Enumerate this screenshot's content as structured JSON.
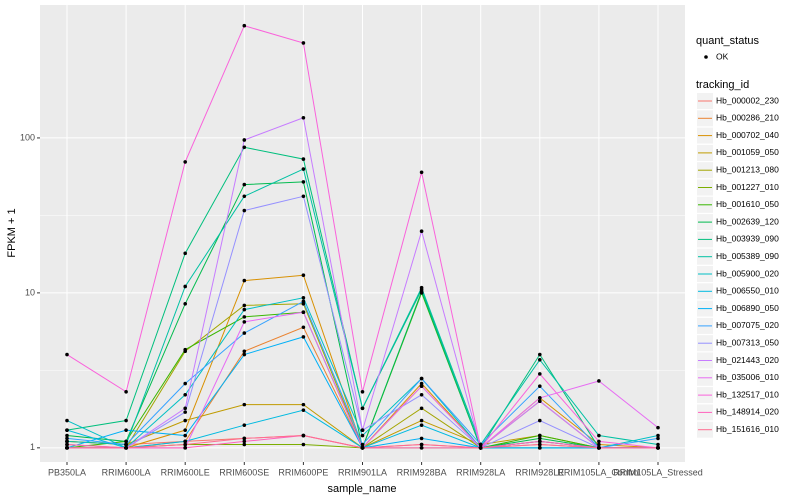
{
  "chart_data": {
    "type": "line",
    "x_label": "sample_name",
    "y_label": "FPKM + 1",
    "log_scale": true,
    "grid": true,
    "ylim": [
      0.81,
      721
    ],
    "yticks": [
      1,
      10,
      100
    ],
    "categories": [
      "PB350LA",
      "RRIM600LA",
      "RRIM600LE",
      "RRIM600SE",
      "RRIM600PE",
      "RRIM901LA",
      "RRIM928BA",
      "RRIM928LA",
      "RRIM928LE",
      "RRIM105LA_Control",
      "RRIM105LA_Stressed"
    ],
    "point_legend_title": "quant_status",
    "point_legend_label": "OK",
    "point_color": "#000000",
    "legend_title": "tracking_id",
    "series": [
      {
        "name": "Hb_000002_230",
        "color": "#F8766D",
        "values": [
          1.1,
          1.05,
          1.1,
          1.15,
          1.2,
          1.0,
          1.05,
          1.0,
          1.05,
          1.0,
          1.0
        ]
      },
      {
        "name": "Hb_000286_210",
        "color": "#EA8331",
        "values": [
          1.0,
          1.0,
          1.1,
          4.2,
          6,
          1.0,
          2.5,
          1.0,
          2.0,
          1.0,
          1.0
        ]
      },
      {
        "name": "Hb_000702_040",
        "color": "#D89000",
        "values": [
          1.0,
          1.0,
          1.3,
          12,
          13,
          1.0,
          2.6,
          1.0,
          2.1,
          1.05,
          1.0
        ]
      },
      {
        "name": "Hb_001059_050",
        "color": "#C09B00",
        "values": [
          1.1,
          1.05,
          1.5,
          1.9,
          1.9,
          1.0,
          1.5,
          1.05,
          1.2,
          1.0,
          1.0
        ]
      },
      {
        "name": "Hb_001213_080",
        "color": "#A3A500",
        "values": [
          1.05,
          1.0,
          4.2,
          8.3,
          8.5,
          1.0,
          1.8,
          1.0,
          1.1,
          1.0,
          1.0
        ]
      },
      {
        "name": "Hb_001227_010",
        "color": "#7CAE00",
        "values": [
          1.0,
          1.0,
          1.05,
          1.05,
          1.05,
          1.0,
          1.0,
          1.0,
          1.0,
          1.0,
          1.0
        ]
      },
      {
        "name": "Hb_001610_050",
        "color": "#39B600",
        "values": [
          1.0,
          1.1,
          4.3,
          7,
          7.5,
          1.0,
          10,
          1.0,
          1.2,
          1.0,
          1.0
        ]
      },
      {
        "name": "Hb_002639_120",
        "color": "#00BB4E",
        "values": [
          1.2,
          1.1,
          8.5,
          50,
          52,
          1.0,
          10.2,
          1.0,
          1.15,
          1.0,
          1.0
        ]
      },
      {
        "name": "Hb_003939_090",
        "color": "#00BF7D",
        "values": [
          1.3,
          1.5,
          18,
          87,
          73,
          1.8,
          10.5,
          1.0,
          4.0,
          1.0,
          1.0
        ]
      },
      {
        "name": "Hb_005389_090",
        "color": "#00C1A3",
        "values": [
          1.1,
          1.05,
          11,
          42,
          63,
          1.8,
          10.8,
          1.05,
          3.7,
          1.2,
          1.05
        ]
      },
      {
        "name": "Hb_005900_020",
        "color": "#00BFC4",
        "values": [
          1.5,
          1.0,
          2.2,
          7.8,
          9.3,
          1.2,
          2.8,
          1.0,
          1.1,
          1.0,
          1.2
        ]
      },
      {
        "name": "Hb_006550_010",
        "color": "#00BAE0",
        "values": [
          1.3,
          1.0,
          1.1,
          1.4,
          1.75,
          1.0,
          1.4,
          1.0,
          1.0,
          1.0,
          1.0
        ]
      },
      {
        "name": "Hb_006890_050",
        "color": "#00B0F6",
        "values": [
          1.0,
          1.3,
          1.2,
          4,
          5.2,
          1.0,
          1.15,
          1.0,
          1.0,
          1.0,
          1.0
        ]
      },
      {
        "name": "Hb_007075_020",
        "color": "#35A2FF",
        "values": [
          1.15,
          1.05,
          2.6,
          5.5,
          8.8,
          1.05,
          2.8,
          1.05,
          2.5,
          1.0,
          1.15
        ]
      },
      {
        "name": "Hb_007313_050",
        "color": "#9590FF",
        "values": [
          1.0,
          1.0,
          1.7,
          34,
          42,
          1.3,
          2.2,
          1.0,
          1.5,
          1.0,
          1.0
        ]
      },
      {
        "name": "Hb_021443_020",
        "color": "#C77CFF",
        "values": [
          1.0,
          1.0,
          1.8,
          97,
          135,
          1.3,
          25,
          1.0,
          2.0,
          1.0,
          1.0
        ]
      },
      {
        "name": "Hb_035006_010",
        "color": "#E76BF3",
        "values": [
          1.0,
          1.0,
          1.0,
          6.5,
          7.5,
          1.0,
          2.5,
          1.0,
          2.1,
          2.7,
          1.35
        ]
      },
      {
        "name": "Hb_132517_010",
        "color": "#FA62DB",
        "values": [
          4,
          2.3,
          70,
          530,
          410,
          2.3,
          60,
          1.0,
          3.0,
          1.1,
          1.0
        ]
      },
      {
        "name": "Hb_148914_020",
        "color": "#FF62BC",
        "values": [
          1.05,
          1.0,
          1.0,
          1.1,
          1.2,
          1.0,
          1.0,
          1.0,
          1.1,
          1.0,
          1.0
        ]
      },
      {
        "name": "Hb_151616_010",
        "color": "#FF6C91",
        "values": [
          1.0,
          1.0,
          1.05,
          1.15,
          1.2,
          1.0,
          1.05,
          1.0,
          1.05,
          1.0,
          1.0
        ]
      }
    ]
  }
}
